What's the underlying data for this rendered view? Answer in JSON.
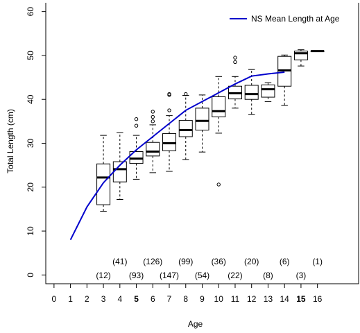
{
  "chart_data": {
    "type": "boxplot",
    "title": "",
    "xlabel": "Age",
    "ylabel": "Total Length (cm)",
    "xlim": [
      -0.5,
      18.5
    ],
    "ylim": [
      -2,
      62
    ],
    "x_ticks": [
      "0",
      "1",
      "2",
      "3",
      "4",
      "5",
      "6",
      "7",
      "8",
      "9",
      "10",
      "11",
      "12",
      "13",
      "14",
      "15",
      "16"
    ],
    "x_ticks_bold": [
      "5",
      "15"
    ],
    "y_ticks": [
      "0",
      "10",
      "20",
      "30",
      "40",
      "50",
      "60"
    ],
    "legend": {
      "label": "NS Mean Length at Age",
      "position": "top-right",
      "color": "#0000cc"
    },
    "mean_line": {
      "name": "NS Mean Length at Age",
      "color": "#0000cc",
      "x": [
        1,
        2,
        3,
        4,
        5,
        6,
        7,
        8,
        9,
        10,
        11,
        12,
        13,
        14
      ],
      "y": [
        8,
        15.5,
        21,
        25,
        28.5,
        31.5,
        34.5,
        37.5,
        39.5,
        41.5,
        43.5,
        45.3,
        45.8,
        46.2
      ]
    },
    "boxes": [
      {
        "age": 3,
        "whisker_low": 14.5,
        "q1": 16,
        "median": 22.2,
        "q3": 25.3,
        "whisker_high": 31.8,
        "outliers": []
      },
      {
        "age": 4,
        "whisker_low": 17.2,
        "q1": 21.2,
        "median": 24.1,
        "q3": 25.8,
        "whisker_high": 32.4,
        "outliers": []
      },
      {
        "age": 5,
        "whisker_low": 21.8,
        "q1": 25.4,
        "median": 26.5,
        "q3": 28.1,
        "whisker_high": 31.8,
        "outliers": [
          34,
          35.5
        ]
      },
      {
        "age": 6,
        "whisker_low": 23.3,
        "q1": 27.1,
        "median": 28.1,
        "q3": 30.2,
        "whisker_high": 34.2,
        "outliers": [
          35,
          36,
          37.2
        ]
      },
      {
        "age": 7,
        "whisker_low": 23.6,
        "q1": 28.3,
        "median": 30,
        "q3": 32.2,
        "whisker_high": 36.3,
        "outliers": [
          37.5,
          41,
          41.2
        ]
      },
      {
        "age": 8,
        "whisker_low": 26.3,
        "q1": 31.5,
        "median": 33,
        "q3": 35.2,
        "whisker_high": 40.9,
        "outliers": [
          41.2
        ]
      },
      {
        "age": 9,
        "whisker_low": 28,
        "q1": 33,
        "median": 35.1,
        "q3": 38,
        "whisker_high": 41,
        "outliers": []
      },
      {
        "age": 10,
        "whisker_low": 32.3,
        "q1": 36,
        "median": 37.3,
        "q3": 40.6,
        "whisker_high": 45.2,
        "outliers": [
          20.6
        ]
      },
      {
        "age": 11,
        "whisker_low": 38,
        "q1": 40.1,
        "median": 41.4,
        "q3": 43,
        "whisker_high": 45.2,
        "outliers": [
          48.5,
          49.5
        ]
      },
      {
        "age": 12,
        "whisker_low": 36.5,
        "q1": 40,
        "median": 41.2,
        "q3": 43.2,
        "whisker_high": 46.8,
        "outliers": []
      },
      {
        "age": 13,
        "whisker_low": 39.5,
        "q1": 40.5,
        "median": 42.3,
        "q3": 43.3,
        "whisker_high": 43.8,
        "outliers": []
      },
      {
        "age": 14,
        "whisker_low": 38.6,
        "q1": 43,
        "median": 46.6,
        "q3": 49.8,
        "whisker_high": 50.1,
        "outliers": []
      },
      {
        "age": 15,
        "whisker_low": 47.6,
        "q1": 49,
        "median": 50.5,
        "q3": 51,
        "whisker_high": 51.3,
        "outliers": []
      },
      {
        "age": 16,
        "whisker_low": 51,
        "q1": 51,
        "median": 51,
        "q3": 51,
        "whisker_high": 51,
        "outliers": []
      }
    ],
    "sample_sizes": [
      {
        "age": 3,
        "label": "(12)",
        "row": "lower"
      },
      {
        "age": 4,
        "label": "(41)",
        "row": "upper"
      },
      {
        "age": 5,
        "label": "(93)",
        "row": "lower"
      },
      {
        "age": 6,
        "label": "(126)",
        "row": "upper"
      },
      {
        "age": 7,
        "label": "(147)",
        "row": "lower"
      },
      {
        "age": 8,
        "label": "(99)",
        "row": "upper"
      },
      {
        "age": 9,
        "label": "(54)",
        "row": "lower"
      },
      {
        "age": 10,
        "label": "(36)",
        "row": "upper"
      },
      {
        "age": 11,
        "label": "(22)",
        "row": "lower"
      },
      {
        "age": 12,
        "label": "(20)",
        "row": "upper"
      },
      {
        "age": 13,
        "label": "(8)",
        "row": "lower"
      },
      {
        "age": 14,
        "label": "(6)",
        "row": "upper"
      },
      {
        "age": 15,
        "label": "(3)",
        "row": "lower"
      },
      {
        "age": 16,
        "label": "(1)",
        "row": "upper"
      }
    ]
  }
}
